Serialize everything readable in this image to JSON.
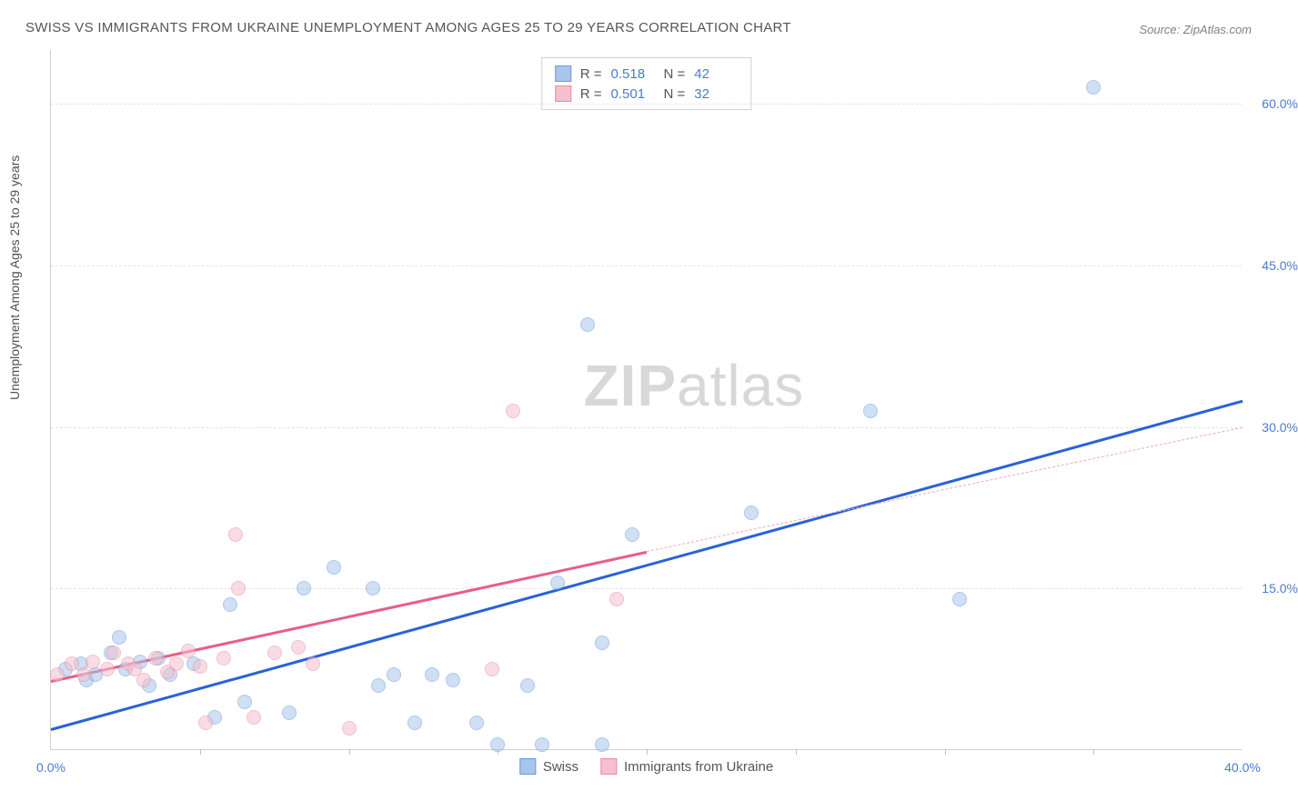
{
  "title": "SWISS VS IMMIGRANTS FROM UKRAINE UNEMPLOYMENT AMONG AGES 25 TO 29 YEARS CORRELATION CHART",
  "source": "Source: ZipAtlas.com",
  "y_axis_label": "Unemployment Among Ages 25 to 29 years",
  "watermark_bold": "ZIP",
  "watermark_light": "atlas",
  "chart": {
    "type": "scatter",
    "background_color": "#ffffff",
    "grid_color": "#e5e5e5",
    "axis_color": "#d0d0d0",
    "tick_label_color": "#4a7bd0",
    "tick_fontsize": 14,
    "xlim": [
      0,
      40
    ],
    "ylim": [
      0,
      65
    ],
    "x_ticks": [
      0,
      40
    ],
    "x_tick_labels": [
      "0.0%",
      "40.0%"
    ],
    "x_minor_ticks": [
      5,
      10,
      15,
      20,
      25,
      30,
      35
    ],
    "y_ticks": [
      15,
      30,
      45,
      60
    ],
    "y_tick_labels": [
      "15.0%",
      "30.0%",
      "45.0%",
      "60.0%"
    ],
    "point_radius": 8,
    "point_opacity": 0.55,
    "series": [
      {
        "name": "Swiss",
        "color_fill": "#a8c5ec",
        "color_stroke": "#6b9bd8",
        "R": "0.518",
        "N": "42",
        "trend": {
          "x1": 0,
          "y1": 2.0,
          "x2": 40,
          "y2": 32.5,
          "stroke": "#2962d9",
          "width": 3,
          "dash": "none"
        },
        "points": [
          [
            0.5,
            7.5
          ],
          [
            1.0,
            8.0
          ],
          [
            1.2,
            6.5
          ],
          [
            1.5,
            7.0
          ],
          [
            2.0,
            9.0
          ],
          [
            2.3,
            10.5
          ],
          [
            2.5,
            7.5
          ],
          [
            3.0,
            8.2
          ],
          [
            3.3,
            6.0
          ],
          [
            3.6,
            8.5
          ],
          [
            4.0,
            7.0
          ],
          [
            4.8,
            8.0
          ],
          [
            5.5,
            3.0
          ],
          [
            6.0,
            13.5
          ],
          [
            6.5,
            4.5
          ],
          [
            8.0,
            3.5
          ],
          [
            8.5,
            15.0
          ],
          [
            9.5,
            17.0
          ],
          [
            10.8,
            15.0
          ],
          [
            11.0,
            6.0
          ],
          [
            11.5,
            7.0
          ],
          [
            12.2,
            2.5
          ],
          [
            12.8,
            7.0
          ],
          [
            13.5,
            6.5
          ],
          [
            14.3,
            2.5
          ],
          [
            15.0,
            0.5
          ],
          [
            16.0,
            6.0
          ],
          [
            16.5,
            0.5
          ],
          [
            17.0,
            15.5
          ],
          [
            18.0,
            39.5
          ],
          [
            18.5,
            0.5
          ],
          [
            18.5,
            10.0
          ],
          [
            19.5,
            20.0
          ],
          [
            23.5,
            22.0
          ],
          [
            27.5,
            31.5
          ],
          [
            30.5,
            14.0
          ],
          [
            35.0,
            61.5
          ]
        ]
      },
      {
        "name": "Immigrants from Ukraine",
        "color_fill": "#f5c0cd",
        "color_stroke": "#e88ba5",
        "R": "0.501",
        "N": "32",
        "trend": {
          "x1": 0,
          "y1": 6.5,
          "x2": 20,
          "y2": 18.5,
          "stroke": "#e85f85",
          "width": 3,
          "dash": "none"
        },
        "trend_ext": {
          "x1": 20,
          "y1": 18.5,
          "x2": 40,
          "y2": 30.0,
          "stroke": "#f0a8b9",
          "width": 1.5,
          "dash": "4,4"
        },
        "points": [
          [
            0.2,
            7.0
          ],
          [
            0.7,
            8.0
          ],
          [
            1.1,
            7.0
          ],
          [
            1.4,
            8.2
          ],
          [
            1.9,
            7.5
          ],
          [
            2.1,
            9.0
          ],
          [
            2.6,
            8.0
          ],
          [
            2.8,
            7.5
          ],
          [
            3.1,
            6.5
          ],
          [
            3.5,
            8.5
          ],
          [
            3.9,
            7.3
          ],
          [
            4.2,
            8.0
          ],
          [
            4.6,
            9.2
          ],
          [
            5.0,
            7.8
          ],
          [
            5.2,
            2.5
          ],
          [
            5.8,
            8.5
          ],
          [
            6.2,
            20.0
          ],
          [
            6.3,
            15.0
          ],
          [
            6.8,
            3.0
          ],
          [
            7.5,
            9.0
          ],
          [
            8.3,
            9.5
          ],
          [
            8.8,
            8.0
          ],
          [
            10.0,
            2.0
          ],
          [
            14.8,
            7.5
          ],
          [
            15.5,
            31.5
          ],
          [
            19.0,
            14.0
          ]
        ]
      }
    ],
    "stats_legend_labels": {
      "R": "R =",
      "N": "N ="
    },
    "bottom_legend": [
      "Swiss",
      "Immigrants from Ukraine"
    ]
  }
}
